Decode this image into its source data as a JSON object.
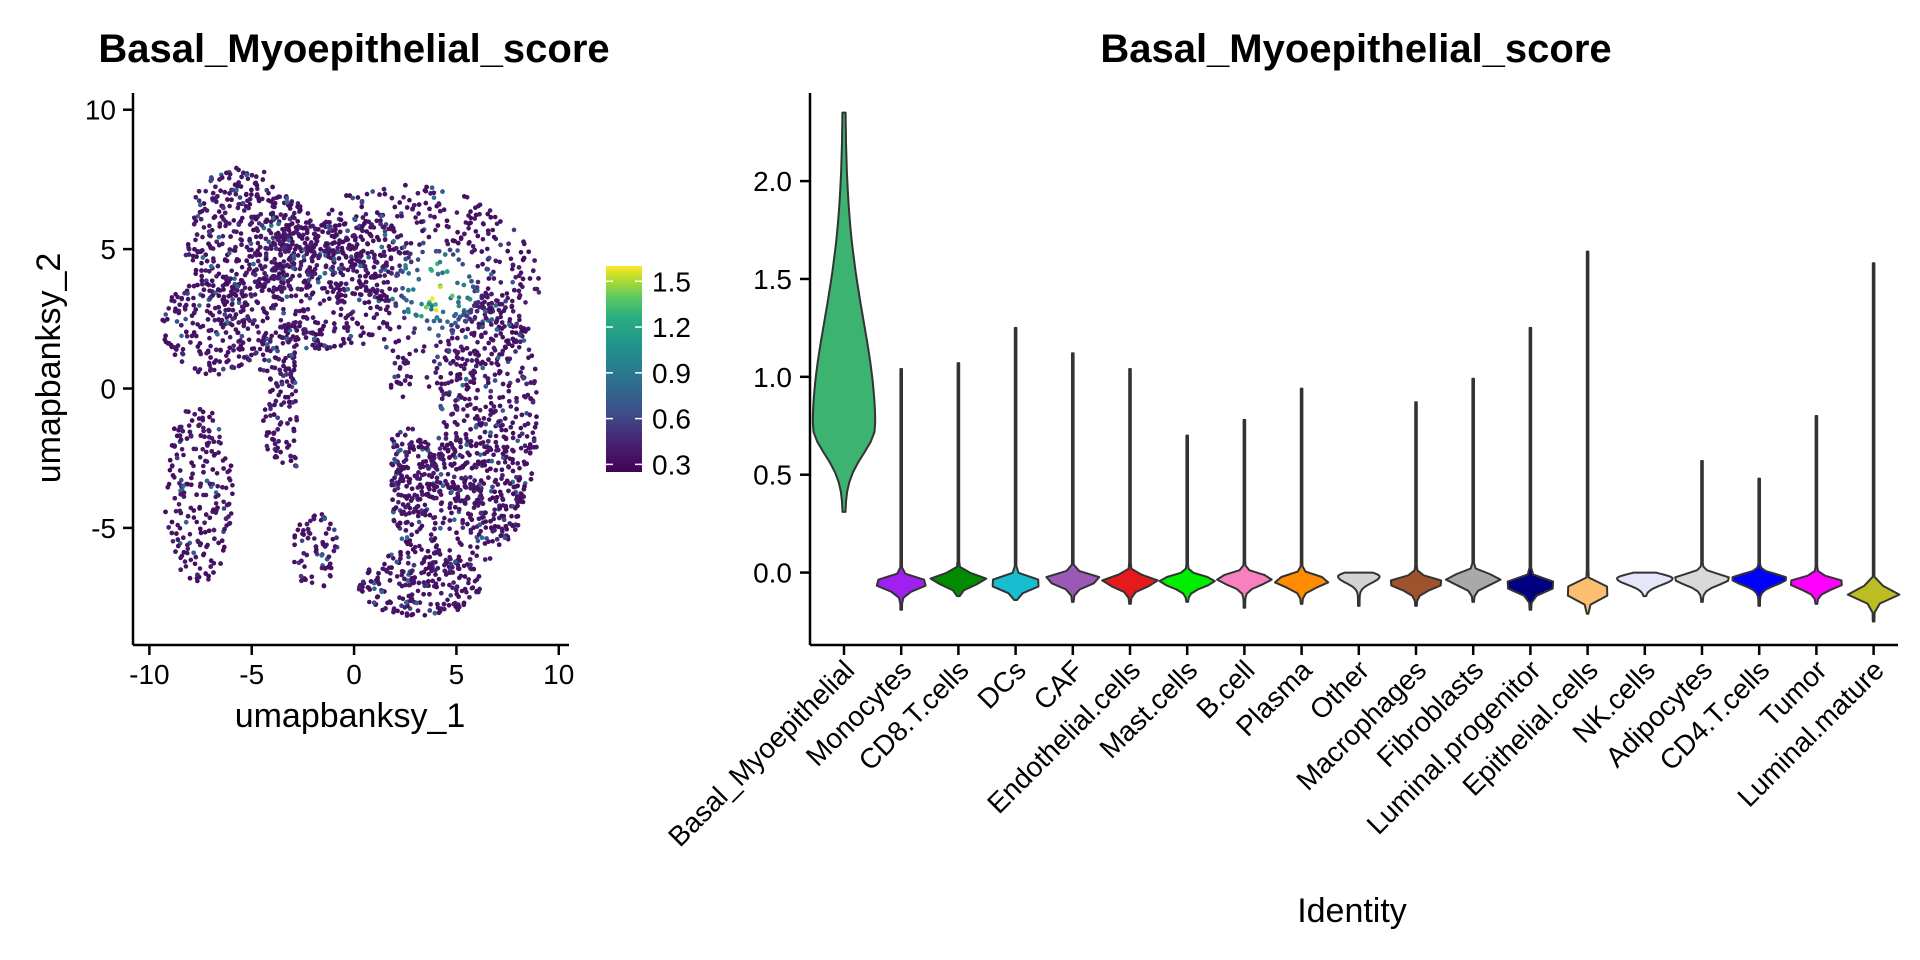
{
  "chart_data": [
    {
      "type": "scatter",
      "title": "Basal_Myoepithelial_score",
      "xlabel": "umapbanksy_1",
      "ylabel": "umapbanksy_2",
      "xlim": [
        -10.8,
        10.5
      ],
      "ylim": [
        -9.2,
        10.6
      ],
      "x_ticks": [
        -10,
        -5,
        0,
        5,
        10
      ],
      "x_tick_labels": [
        "-10",
        "-5",
        "0",
        "5",
        "10"
      ],
      "y_ticks": [
        -5,
        0,
        5,
        10
      ],
      "y_tick_labels": [
        "-5",
        "0",
        "5",
        "10"
      ],
      "colorbar": {
        "colormap": "viridis",
        "range": [
          0.25,
          1.6
        ],
        "ticks": [
          0.3,
          0.6,
          0.9,
          1.2,
          1.5
        ],
        "tick_labels": [
          "0.3",
          "0.6",
          "0.9",
          "1.2",
          "1.5"
        ],
        "low_color": "#440154",
        "high_color": "#fde725"
      },
      "high_score_region": {
        "x": [
          1.5,
          6.5
        ],
        "y": [
          1.5,
          5.5
        ],
        "peak_value": 1.5
      },
      "base_value": 0.3,
      "grid": false
    },
    {
      "type": "violin",
      "title": "Basal_Myoepithelial_score",
      "xlabel": "Identity",
      "ylabel": "",
      "ylim": [
        -0.37,
        2.45
      ],
      "y_ticks": [
        0.0,
        0.5,
        1.0,
        1.5,
        2.0
      ],
      "y_tick_labels": [
        "0.0",
        "0.5",
        "1.0",
        "1.5",
        "2.0"
      ],
      "categories": [
        "Basal_Myoepithelial",
        "Monocytes",
        "CD8.T.cells",
        "DCs",
        "CAF",
        "Endothelial.cells",
        "Mast.cells",
        "B.cell",
        "Plasma",
        "Other",
        "Macrophages",
        "Fibroblasts",
        "Luminal.progenitor",
        "Epithelial.cells",
        "NK.cells",
        "Adipocytes",
        "CD4.T.cells",
        "Tumor",
        "Luminal.mature"
      ],
      "colors": [
        "#3cb371",
        "#a020f0",
        "#008b00",
        "#17becf",
        "#9b59b6",
        "#e41a1c",
        "#00ee00",
        "#f781bf",
        "#ff8c00",
        "#d3d3d3",
        "#a0522d",
        "#a9a9a9",
        "#000080",
        "#fdbf6f",
        "#e6e6fa",
        "#d9d9d9",
        "#0000ff",
        "#ff00ff",
        "#bcbd22"
      ],
      "min": [
        0.31,
        -0.19,
        -0.12,
        -0.14,
        -0.15,
        -0.16,
        -0.15,
        -0.18,
        -0.16,
        -0.17,
        -0.17,
        -0.15,
        -0.19,
        -0.21,
        -0.12,
        -0.15,
        -0.17,
        -0.16,
        -0.25
      ],
      "max": [
        2.35,
        1.04,
        1.07,
        1.25,
        1.12,
        1.04,
        0.7,
        0.78,
        0.94,
        0.0,
        0.87,
        0.99,
        1.25,
        1.64,
        0.0,
        0.57,
        0.48,
        0.8,
        1.58
      ],
      "median": [
        0.75,
        -0.05,
        -0.03,
        -0.05,
        -0.03,
        -0.04,
        -0.04,
        -0.03,
        -0.04,
        -0.02,
        -0.05,
        -0.03,
        -0.06,
        -0.09,
        -0.03,
        -0.03,
        -0.03,
        -0.05,
        -0.1
      ],
      "grid": false
    }
  ]
}
